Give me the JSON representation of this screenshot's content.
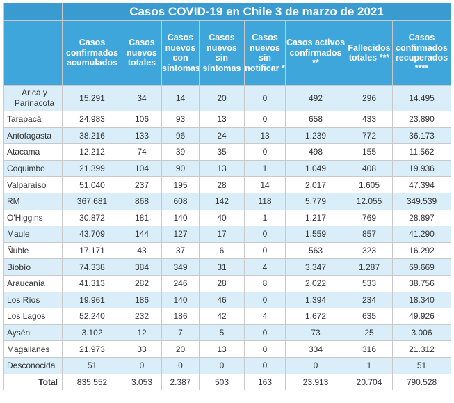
{
  "title": "Casos COVID-19 en Chile 3 de marzo de 2021",
  "columns": [
    "Casos confirmados acumulados",
    "Casos nuevos totales",
    "Casos nuevos con síntomas",
    "Casos nuevos sin síntomas",
    "Casos nuevos sin notificar *",
    "Casos activos confirmados **",
    "Fallecidos totales ***",
    "Casos confirmados recuperados ****"
  ],
  "rows": [
    {
      "region": "Arica y Parinacota",
      "values": [
        "15.291",
        "34",
        "14",
        "20",
        "0",
        "492",
        "296",
        "14.495"
      ]
    },
    {
      "region": "Tarapacá",
      "values": [
        "24.983",
        "106",
        "93",
        "13",
        "0",
        "658",
        "433",
        "23.890"
      ]
    },
    {
      "region": "Antofagasta",
      "values": [
        "38.216",
        "133",
        "96",
        "24",
        "13",
        "1.239",
        "772",
        "36.173"
      ]
    },
    {
      "region": "Atacama",
      "values": [
        "12.212",
        "74",
        "39",
        "35",
        "0",
        "498",
        "155",
        "11.562"
      ]
    },
    {
      "region": "Coquimbo",
      "values": [
        "21.399",
        "104",
        "90",
        "13",
        "1",
        "1.049",
        "408",
        "19.936"
      ]
    },
    {
      "region": "Valparaíso",
      "values": [
        "51.040",
        "237",
        "195",
        "28",
        "14",
        "2.017",
        "1.605",
        "47.394"
      ]
    },
    {
      "region": "RM",
      "values": [
        "367.681",
        "868",
        "608",
        "142",
        "118",
        "5.779",
        "12.055",
        "349.539"
      ]
    },
    {
      "region": "O'Higgins",
      "values": [
        "30.872",
        "181",
        "140",
        "40",
        "1",
        "1.217",
        "769",
        "28.897"
      ]
    },
    {
      "region": "Maule",
      "values": [
        "43.709",
        "144",
        "127",
        "17",
        "0",
        "1.559",
        "857",
        "41.290"
      ]
    },
    {
      "region": "Ñuble",
      "values": [
        "17.171",
        "43",
        "37",
        "6",
        "0",
        "563",
        "323",
        "16.292"
      ]
    },
    {
      "region": "Biobío",
      "values": [
        "74.338",
        "384",
        "349",
        "31",
        "4",
        "3.347",
        "1.287",
        "69.669"
      ]
    },
    {
      "region": "Araucanía",
      "values": [
        "41.313",
        "282",
        "246",
        "28",
        "8",
        "2.022",
        "533",
        "38.756"
      ]
    },
    {
      "region": "Los Ríos",
      "values": [
        "19.961",
        "186",
        "140",
        "46",
        "0",
        "1.394",
        "234",
        "18.340"
      ]
    },
    {
      "region": "Los Lagos",
      "values": [
        "52.240",
        "232",
        "186",
        "42",
        "4",
        "1.672",
        "635",
        "49.926"
      ]
    },
    {
      "region": "Aysén",
      "values": [
        "3.102",
        "12",
        "7",
        "5",
        "0",
        "73",
        "25",
        "3.006"
      ]
    },
    {
      "region": "Magallanes",
      "values": [
        "21.973",
        "33",
        "20",
        "13",
        "0",
        "334",
        "316",
        "21.312"
      ]
    },
    {
      "region": "Desconocida",
      "values": [
        "51",
        "0",
        "0",
        "0",
        "0",
        "0",
        "1",
        "51"
      ]
    }
  ],
  "total": {
    "label": "Total",
    "values": [
      "835.552",
      "3.053",
      "2.387",
      "503",
      "163",
      "23.913",
      "20.704",
      "790.528"
    ]
  },
  "colors": {
    "header_bg": "#3fa6dc",
    "title_bg": "#3a9bd0",
    "stripe_bg": "#d9eef9",
    "border": "#c9c9c9",
    "text": "#333333"
  }
}
